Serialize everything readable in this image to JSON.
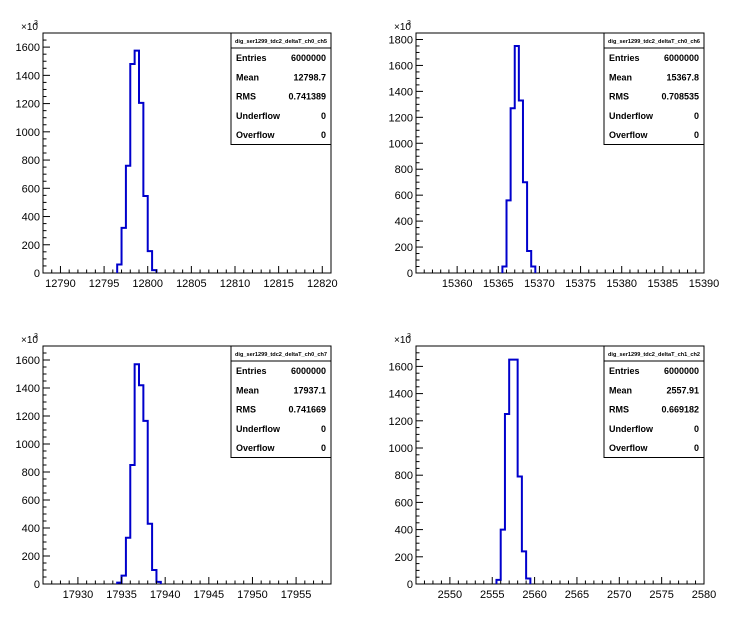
{
  "chart_data": [
    {
      "type": "histogram",
      "exponent_label": "×10",
      "exponent_power": "3",
      "xlim": [
        12788,
        12821
      ],
      "ylim": [
        0,
        1700
      ],
      "xticks": [
        12790,
        12795,
        12800,
        12805,
        12810,
        12815,
        12820
      ],
      "yticks": [
        0,
        200,
        400,
        600,
        800,
        1000,
        1200,
        1400,
        1600
      ],
      "bin_width": 0.5,
      "bins": [
        {
          "x": 12796.5,
          "y": 60
        },
        {
          "x": 12797.0,
          "y": 320
        },
        {
          "x": 12797.5,
          "y": 760
        },
        {
          "x": 12798.0,
          "y": 1480
        },
        {
          "x": 12798.5,
          "y": 1575
        },
        {
          "x": 12799.0,
          "y": 1205
        },
        {
          "x": 12799.5,
          "y": 545
        },
        {
          "x": 12800.0,
          "y": 155
        },
        {
          "x": 12800.5,
          "y": 20
        }
      ],
      "stats": {
        "title": "dig_ser1299_tdc2_deltaT_ch0_ch5",
        "rows": [
          {
            "label": "Entries",
            "value": "6000000"
          },
          {
            "label": "Mean",
            "value": "12798.7"
          },
          {
            "label": "RMS",
            "value": "0.741389"
          },
          {
            "label": "Underflow",
            "value": "0"
          },
          {
            "label": "Overflow",
            "value": "0"
          }
        ]
      }
    },
    {
      "type": "histogram",
      "exponent_label": "×10",
      "exponent_power": "3",
      "xlim": [
        15355,
        15390
      ],
      "ylim": [
        0,
        1850
      ],
      "xticks": [
        15360,
        15365,
        15370,
        15375,
        15380,
        15385,
        15390
      ],
      "yticks": [
        0,
        200,
        400,
        600,
        800,
        1000,
        1200,
        1400,
        1600,
        1800
      ],
      "bin_width": 0.5,
      "bins": [
        {
          "x": 15365.5,
          "y": 50
        },
        {
          "x": 15366.0,
          "y": 560
        },
        {
          "x": 15366.5,
          "y": 1270
        },
        {
          "x": 15367.0,
          "y": 1750
        },
        {
          "x": 15367.5,
          "y": 1330
        },
        {
          "x": 15368.0,
          "y": 700
        },
        {
          "x": 15368.5,
          "y": 170
        },
        {
          "x": 15369.0,
          "y": 50
        }
      ],
      "stats": {
        "title": "dig_ser1299_tdc2_deltaT_ch0_ch6",
        "rows": [
          {
            "label": "Entries",
            "value": "6000000"
          },
          {
            "label": "Mean",
            "value": "15367.8"
          },
          {
            "label": "RMS",
            "value": "0.708535"
          },
          {
            "label": "Underflow",
            "value": "0"
          },
          {
            "label": "Overflow",
            "value": "0"
          }
        ]
      }
    },
    {
      "type": "histogram",
      "exponent_label": "×10",
      "exponent_power": "3",
      "xlim": [
        17926,
        17959
      ],
      "ylim": [
        0,
        1700
      ],
      "xticks": [
        17930,
        17935,
        17940,
        17945,
        17950,
        17955
      ],
      "yticks": [
        0,
        200,
        400,
        600,
        800,
        1000,
        1200,
        1400,
        1600
      ],
      "bin_width": 0.5,
      "bins": [
        {
          "x": 17934.5,
          "y": 10
        },
        {
          "x": 17935.0,
          "y": 60
        },
        {
          "x": 17935.5,
          "y": 330
        },
        {
          "x": 17936.0,
          "y": 850
        },
        {
          "x": 17936.5,
          "y": 1570
        },
        {
          "x": 17937.0,
          "y": 1420
        },
        {
          "x": 17937.5,
          "y": 1165
        },
        {
          "x": 17938.0,
          "y": 430
        },
        {
          "x": 17938.5,
          "y": 100
        },
        {
          "x": 17939.0,
          "y": 15
        }
      ],
      "stats": {
        "title": "dig_ser1299_tdc2_deltaT_ch0_ch7",
        "rows": [
          {
            "label": "Entries",
            "value": "6000000"
          },
          {
            "label": "Mean",
            "value": "17937.1"
          },
          {
            "label": "RMS",
            "value": "0.741669"
          },
          {
            "label": "Underflow",
            "value": "0"
          },
          {
            "label": "Overflow",
            "value": "0"
          }
        ]
      }
    },
    {
      "type": "histogram",
      "exponent_label": "×10",
      "exponent_power": "3",
      "xlim": [
        2546,
        2580
      ],
      "ylim": [
        0,
        1750
      ],
      "xticks": [
        2550,
        2555,
        2560,
        2565,
        2570,
        2575,
        2580
      ],
      "yticks": [
        0,
        200,
        400,
        600,
        800,
        1000,
        1200,
        1400,
        1600
      ],
      "bin_width": 0.5,
      "bins": [
        {
          "x": 2555.5,
          "y": 30
        },
        {
          "x": 2556.0,
          "y": 400
        },
        {
          "x": 2556.5,
          "y": 1250
        },
        {
          "x": 2557.0,
          "y": 1650
        },
        {
          "x": 2557.5,
          "y": 1650
        },
        {
          "x": 2558.0,
          "y": 790
        },
        {
          "x": 2558.5,
          "y": 240
        },
        {
          "x": 2559.0,
          "y": 40
        }
      ],
      "stats": {
        "title": "dig_ser1299_tdc2_deltaT_ch1_ch2",
        "rows": [
          {
            "label": "Entries",
            "value": "6000000"
          },
          {
            "label": "Mean",
            "value": "2557.91"
          },
          {
            "label": "RMS",
            "value": "0.669182"
          },
          {
            "label": "Underflow",
            "value": "0"
          },
          {
            "label": "Overflow",
            "value": "0"
          }
        ]
      }
    }
  ],
  "colors": {
    "histogram_line": "#0000cc",
    "axis": "#000000",
    "background": "#ffffff"
  }
}
